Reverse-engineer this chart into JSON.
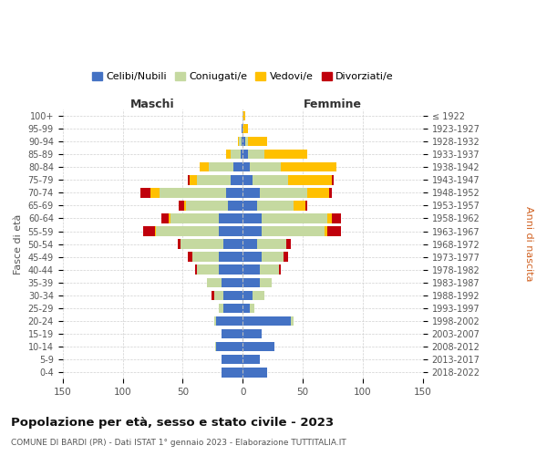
{
  "age_groups": [
    "0-4",
    "5-9",
    "10-14",
    "15-19",
    "20-24",
    "25-29",
    "30-34",
    "35-39",
    "40-44",
    "45-49",
    "50-54",
    "55-59",
    "60-64",
    "65-69",
    "70-74",
    "75-79",
    "80-84",
    "85-89",
    "90-94",
    "95-99",
    "100+"
  ],
  "birth_years": [
    "2018-2022",
    "2013-2017",
    "2008-2012",
    "2003-2007",
    "1998-2002",
    "1993-1997",
    "1988-1992",
    "1983-1987",
    "1978-1982",
    "1973-1977",
    "1968-1972",
    "1963-1967",
    "1958-1962",
    "1953-1957",
    "1948-1952",
    "1943-1947",
    "1938-1942",
    "1933-1937",
    "1928-1932",
    "1923-1927",
    "≤ 1922"
  ],
  "colors": {
    "celibe": "#4472C4",
    "coniugato": "#C5D9A0",
    "vedovo": "#FFC000",
    "divorziato": "#C0000C"
  },
  "maschi": {
    "celibe": [
      18,
      18,
      22,
      18,
      22,
      16,
      16,
      18,
      20,
      20,
      16,
      20,
      20,
      12,
      14,
      10,
      8,
      2,
      1,
      1,
      0
    ],
    "coniugato": [
      0,
      0,
      1,
      0,
      2,
      4,
      8,
      12,
      18,
      22,
      36,
      52,
      40,
      35,
      55,
      28,
      20,
      8,
      2,
      0,
      0
    ],
    "vedovo": [
      0,
      0,
      0,
      0,
      0,
      0,
      0,
      0,
      0,
      0,
      0,
      1,
      2,
      2,
      8,
      6,
      8,
      4,
      1,
      0,
      0
    ],
    "divorziato": [
      0,
      0,
      0,
      0,
      0,
      0,
      2,
      0,
      2,
      4,
      2,
      10,
      6,
      4,
      8,
      2,
      0,
      0,
      0,
      0,
      0
    ]
  },
  "femmine": {
    "nubile": [
      20,
      14,
      26,
      16,
      40,
      6,
      8,
      14,
      14,
      16,
      12,
      16,
      16,
      12,
      14,
      8,
      6,
      4,
      2,
      0,
      0
    ],
    "coniugata": [
      0,
      0,
      0,
      0,
      2,
      4,
      10,
      10,
      16,
      18,
      24,
      52,
      54,
      30,
      40,
      30,
      26,
      14,
      2,
      0,
      0
    ],
    "vedova": [
      0,
      0,
      0,
      0,
      0,
      0,
      0,
      0,
      0,
      0,
      0,
      2,
      4,
      10,
      18,
      36,
      46,
      36,
      16,
      4,
      2
    ],
    "divorziata": [
      0,
      0,
      0,
      0,
      0,
      0,
      0,
      0,
      2,
      4,
      4,
      12,
      8,
      2,
      2,
      2,
      0,
      0,
      0,
      0,
      0
    ]
  },
  "xlim": 150,
  "title": "Popolazione per età, sesso e stato civile - 2023",
  "subtitle": "COMUNE DI BARDI (PR) - Dati ISTAT 1° gennaio 2023 - Elaborazione TUTTITALIA.IT",
  "ylabel_left": "Fasce di età",
  "ylabel_right": "Anni di nascita",
  "xlabel_maschi": "Maschi",
  "xlabel_femmine": "Femmine",
  "legend_labels": [
    "Celibi/Nubili",
    "Coniugati/e",
    "Vedovi/e",
    "Divorziati/e"
  ],
  "bg_color": "#FFFFFF",
  "grid_color": "#CCCCCC",
  "bar_height": 0.75,
  "fig_width": 6.0,
  "fig_height": 5.0
}
